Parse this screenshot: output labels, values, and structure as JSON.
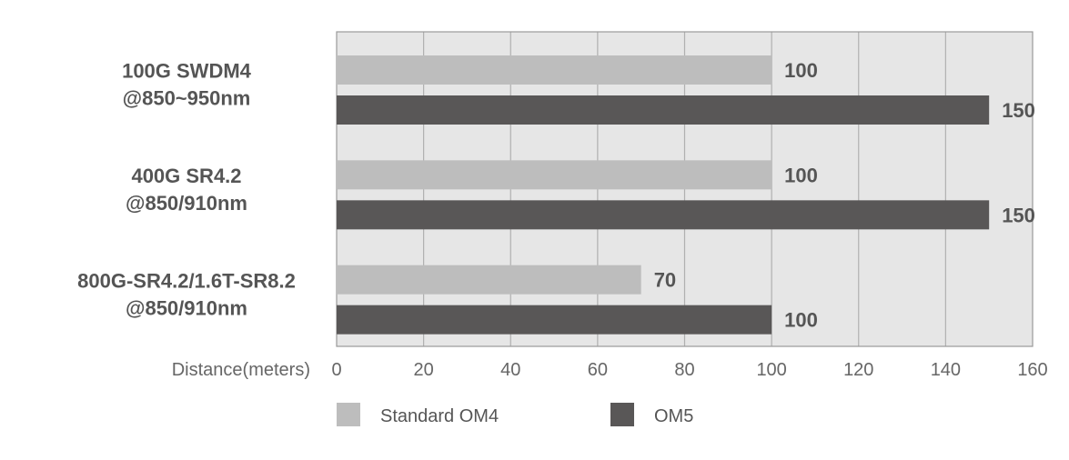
{
  "chart_data": {
    "type": "bar",
    "orientation": "horizontal",
    "categories": [
      [
        "100G SWDM4",
        "@850~950nm"
      ],
      [
        "400G SR4.2",
        "@850/910nm"
      ],
      [
        "800G-SR4.2/1.6T-SR8.2",
        "@850/910nm"
      ]
    ],
    "series": [
      {
        "name": "Standard OM4",
        "color": "#bdbdbd",
        "values": [
          100,
          100,
          70
        ]
      },
      {
        "name": "OM5",
        "color": "#595757",
        "values": [
          150,
          150,
          100
        ]
      }
    ],
    "xlabel": "Distance(meters)",
    "xlim": [
      0,
      160
    ],
    "xticks": [
      0,
      20,
      40,
      60,
      80,
      100,
      120,
      140,
      160
    ],
    "grid": true,
    "legend": "bottom",
    "plot_background": "#e6e6e6",
    "grid_color": "#b0b0b0"
  }
}
